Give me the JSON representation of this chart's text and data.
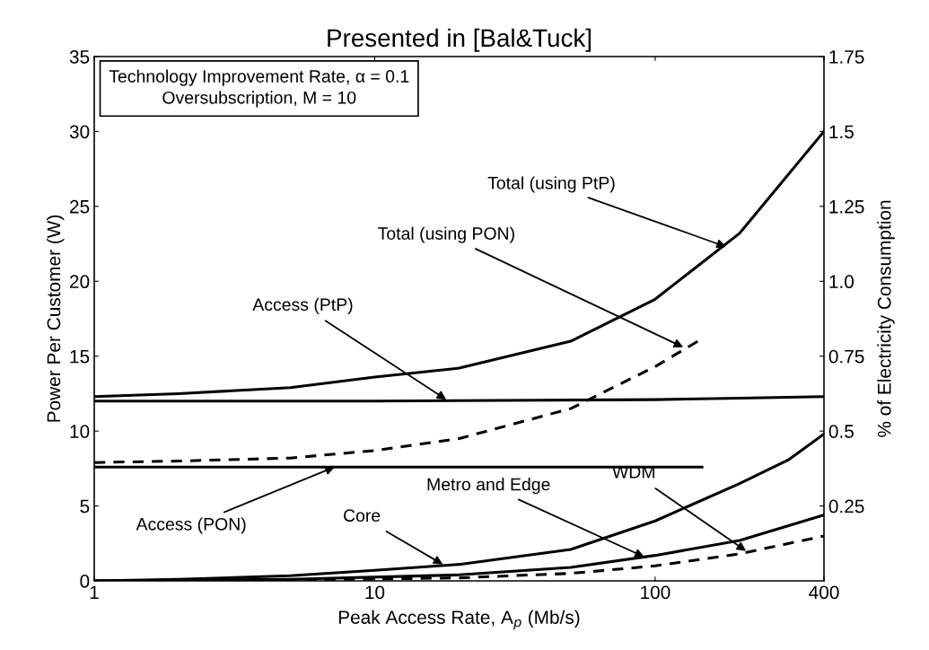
{
  "chart_data": {
    "type": "line",
    "title": "Presented in [Bal&Tuck]",
    "xlabel": "Peak Access Rate, A$_{p}$ (Mb/s)",
    "ylabel": "Power Per Customer (W)",
    "y2label": "% of Electricity Consumption",
    "log": "x",
    "xlim": [
      1,
      400
    ],
    "xticks": [
      1,
      10,
      100,
      400
    ],
    "ylim": [
      0,
      35
    ],
    "yticks": [
      0,
      5,
      10,
      15,
      20,
      25,
      30,
      35
    ],
    "y2lim": [
      0,
      1.75
    ],
    "y2ticks": [
      0.25,
      0.5,
      0.75,
      {
        "value": 1.0,
        "label": "1.0"
      },
      1.25,
      1.5,
      1.75
    ],
    "grid": false,
    "legend": false,
    "marker": "none",
    "series": [
      {
        "color": "#000000",
        "line_style": "solid",
        "x": [
          1,
          2,
          5,
          10,
          20,
          50,
          100,
          200,
          400
        ],
        "values": [
          12.3,
          12.5,
          12.9,
          13.6,
          14.2,
          16.0,
          18.8,
          23.2,
          30
        ]
      },
      {
        "color": "#000000",
        "line_style": "solid",
        "x": [
          1,
          10,
          100,
          200,
          400
        ],
        "values": [
          12.0,
          12.0,
          12.1,
          12.2,
          12.3
        ]
      },
      {
        "color": "#000000",
        "line_style": "dashed",
        "x": [
          1,
          2,
          5,
          10,
          20,
          50,
          100,
          145
        ],
        "values": [
          7.9,
          8.0,
          8.2,
          8.7,
          9.5,
          11.5,
          14.3,
          16.1
        ]
      },
      {
        "color": "#000000",
        "line_style": "solid",
        "x": [
          1,
          147
        ],
        "values": [
          7.6,
          7.6
        ]
      },
      {
        "color": "#000000",
        "line_style": "solid",
        "x": [
          1,
          2,
          5,
          10,
          20,
          50,
          100,
          200,
          300,
          400
        ],
        "values": [
          0,
          0.1,
          0.35,
          0.7,
          1.1,
          2.1,
          4.0,
          6.5,
          8.1,
          9.8
        ]
      },
      {
        "color": "#000000",
        "line_style": "solid",
        "x": [
          1,
          5,
          20,
          50,
          100,
          200,
          400
        ],
        "values": [
          0,
          0.1,
          0.4,
          0.9,
          1.7,
          2.7,
          4.4
        ]
      },
      {
        "color": "#000000",
        "line_style": "dashed",
        "x": [
          1,
          5,
          20,
          50,
          100,
          200,
          400
        ],
        "values": [
          0,
          0.05,
          0.2,
          0.5,
          1.0,
          1.8,
          3.0
        ]
      }
    ],
    "annotations": [
      "Technology Improvement Rate, α = 0.1\nOversubscription, M = 10",
      {
        "text": "Total (using PtP)",
        "x": 179,
        "y": 22.3
      },
      {
        "text": "Total (using PON)",
        "x": 126,
        "y": 15.6
      },
      {
        "text": "Access (PtP)",
        "x": 18,
        "y": 12.1
      },
      {
        "text": "Access (PON)",
        "x": 7.2,
        "y": 7.6
      },
      {
        "text": "Core",
        "x": 17.5,
        "y": 1.1
      },
      {
        "text": "Metro and Edge",
        "x": 91.5,
        "y": 1.6
      },
      {
        "text": "WDM",
        "x": 211,
        "y": 2.0
      }
    ]
  }
}
